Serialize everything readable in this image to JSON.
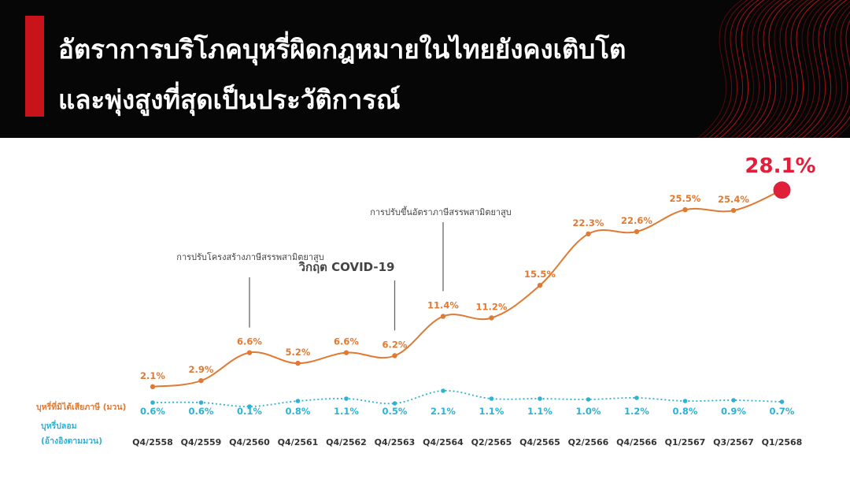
{
  "header": {
    "title_line1": "อัตราการบริโภคบุหรี่ผิดกฎหมายในไทยยังคงเติบโต",
    "title_line2": "และพุ่งสูงที่สุดเป็นประวัติการณ์"
  },
  "colors": {
    "accent": "#c8131b",
    "illicit_series": "#e07a33",
    "counterfeit_series": "#2fb1d4",
    "highlight": "#e0203a"
  },
  "chart_data": {
    "type": "line",
    "categories": [
      "Q4/2558",
      "Q4/2559",
      "Q4/2560",
      "Q4/2561",
      "Q4/2562",
      "Q4/2563",
      "Q4/2564",
      "Q2/2565",
      "Q4/2565",
      "Q2/2566",
      "Q4/2566",
      "Q1/2567",
      "Q3/2567",
      "Q1/2568"
    ],
    "series": [
      {
        "name": "บุหรี่ที่มิได้เสียภาษี (มวน)",
        "values": [
          2.1,
          2.9,
          6.6,
          5.2,
          6.6,
          6.2,
          11.4,
          11.2,
          15.5,
          22.3,
          22.6,
          25.5,
          25.4,
          28.1
        ],
        "labels": [
          "2.1%",
          "2.9%",
          "6.6%",
          "5.2%",
          "6.6%",
          "6.2%",
          "11.4%",
          "11.2%",
          "15.5%",
          "22.3%",
          "22.6%",
          "25.5%",
          "25.4%",
          "28.1%"
        ]
      },
      {
        "name": "บุหรี่ปลอม (อ้างอิงตามมวน)",
        "values": [
          0.6,
          0.6,
          0.1,
          0.8,
          1.1,
          0.5,
          2.1,
          1.1,
          1.1,
          1.0,
          1.2,
          0.8,
          0.9,
          0.7
        ],
        "labels": [
          "0.6%",
          "0.6%",
          "0.1%",
          "0.8%",
          "1.1%",
          "0.5%",
          "2.1%",
          "1.1%",
          "1.1%",
          "1.0%",
          "1.2%",
          "0.8%",
          "0.9%",
          "0.7%"
        ]
      }
    ],
    "annotations": [
      {
        "category": "Q4/2560",
        "text": "การปรับโครงสร้างภาษีสรรพสามิตยาสูบ"
      },
      {
        "category": "Q4/2563",
        "text": "วิกฤต COVID-19"
      },
      {
        "category": "Q4/2564",
        "text": "การปรับขึ้นอัตราภาษีสรรพสามิตยาสูบ"
      }
    ],
    "grid": false
  }
}
